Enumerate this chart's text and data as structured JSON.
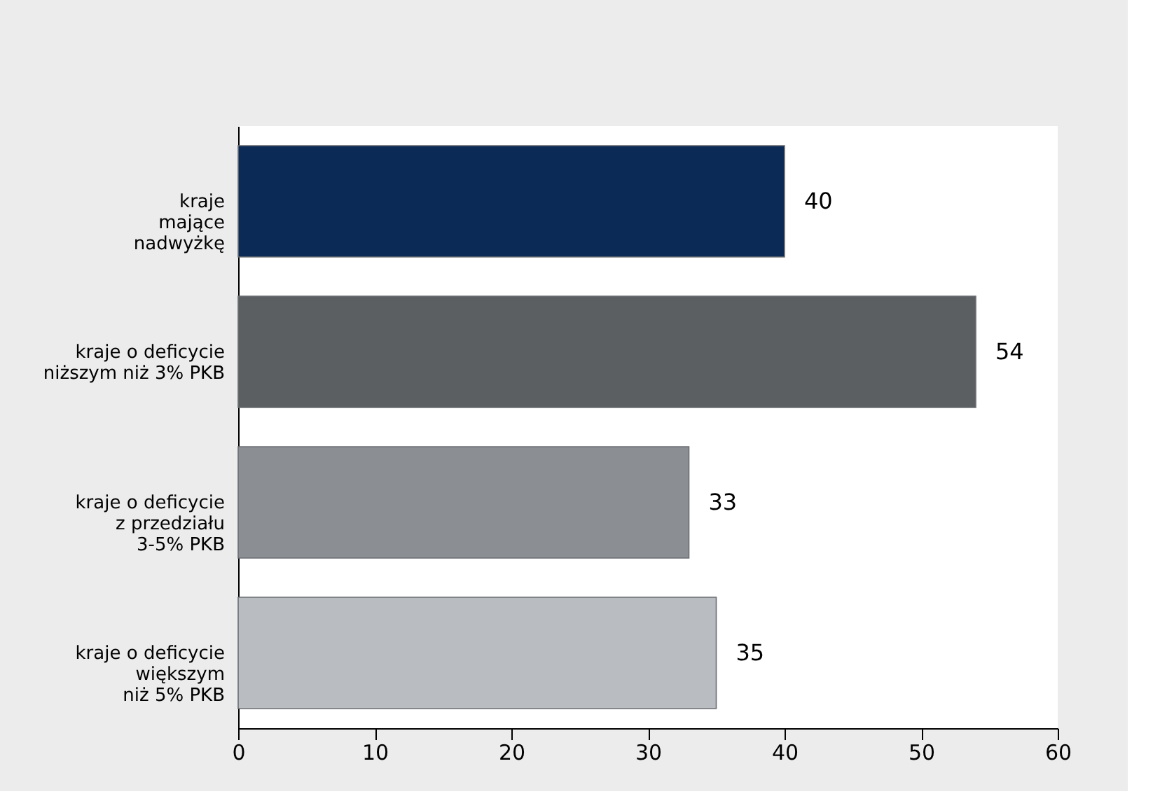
{
  "chart_data": {
    "type": "bar",
    "orientation": "horizontal",
    "categories": [
      "kraje\nmające\nnadwyżkę",
      "kraje o deficycie\nniższym niż 3% PKB",
      "kraje o deficycie\nz przedziału\n3-5% PKB",
      "kraje o deficycie\nwiększym\nniż 5% PKB"
    ],
    "values": [
      40,
      54,
      33,
      35
    ],
    "colors": [
      "#0b2a55",
      "#5b5f62",
      "#8b8e93",
      "#b9bcc0"
    ],
    "xlim": [
      0,
      60
    ],
    "xticks": [
      0,
      10,
      20,
      30,
      40,
      50,
      60
    ],
    "data_labels": true,
    "grid": false
  }
}
